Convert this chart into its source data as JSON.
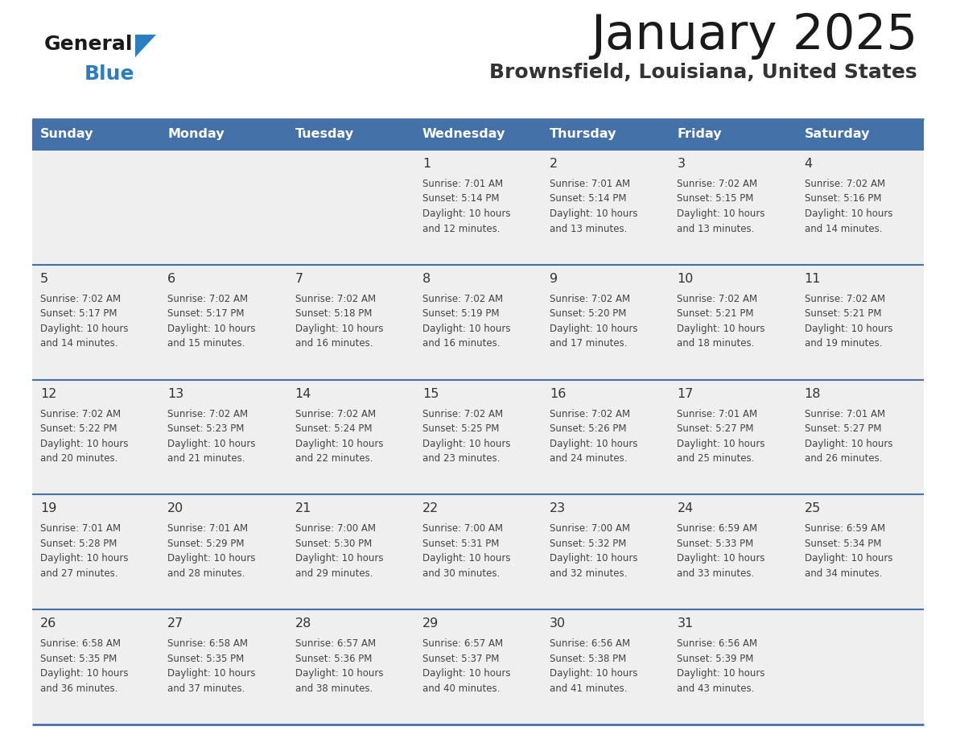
{
  "title": "January 2025",
  "subtitle": "Brownsfield, Louisiana, United States",
  "days_of_week": [
    "Sunday",
    "Monday",
    "Tuesday",
    "Wednesday",
    "Thursday",
    "Friday",
    "Saturday"
  ],
  "header_bg": "#4472a8",
  "header_text": "#FFFFFF",
  "cell_bg": "#EFEFEF",
  "cell_bg_alt": "#EFEFEF",
  "title_color": "#1a1a1a",
  "subtitle_color": "#333333",
  "day_number_color": "#333333",
  "cell_text_color": "#444444",
  "divider_color": "#4472a8",
  "logo_general_color": "#1a1a1a",
  "logo_blue_color": "#2B7EC1",
  "logo_triangle_color": "#2B7EC1",
  "weeks": [
    {
      "days": [
        {
          "date": "",
          "sunrise": "",
          "sunset": "",
          "daylight": ""
        },
        {
          "date": "",
          "sunrise": "",
          "sunset": "",
          "daylight": ""
        },
        {
          "date": "",
          "sunrise": "",
          "sunset": "",
          "daylight": ""
        },
        {
          "date": "1",
          "sunrise": "7:01 AM",
          "sunset": "5:14 PM",
          "daylight": "10 hours and 12 minutes."
        },
        {
          "date": "2",
          "sunrise": "7:01 AM",
          "sunset": "5:14 PM",
          "daylight": "10 hours and 13 minutes."
        },
        {
          "date": "3",
          "sunrise": "7:02 AM",
          "sunset": "5:15 PM",
          "daylight": "10 hours and 13 minutes."
        },
        {
          "date": "4",
          "sunrise": "7:02 AM",
          "sunset": "5:16 PM",
          "daylight": "10 hours and 14 minutes."
        }
      ]
    },
    {
      "days": [
        {
          "date": "5",
          "sunrise": "7:02 AM",
          "sunset": "5:17 PM",
          "daylight": "10 hours and 14 minutes."
        },
        {
          "date": "6",
          "sunrise": "7:02 AM",
          "sunset": "5:17 PM",
          "daylight": "10 hours and 15 minutes."
        },
        {
          "date": "7",
          "sunrise": "7:02 AM",
          "sunset": "5:18 PM",
          "daylight": "10 hours and 16 minutes."
        },
        {
          "date": "8",
          "sunrise": "7:02 AM",
          "sunset": "5:19 PM",
          "daylight": "10 hours and 16 minutes."
        },
        {
          "date": "9",
          "sunrise": "7:02 AM",
          "sunset": "5:20 PM",
          "daylight": "10 hours and 17 minutes."
        },
        {
          "date": "10",
          "sunrise": "7:02 AM",
          "sunset": "5:21 PM",
          "daylight": "10 hours and 18 minutes."
        },
        {
          "date": "11",
          "sunrise": "7:02 AM",
          "sunset": "5:21 PM",
          "daylight": "10 hours and 19 minutes."
        }
      ]
    },
    {
      "days": [
        {
          "date": "12",
          "sunrise": "7:02 AM",
          "sunset": "5:22 PM",
          "daylight": "10 hours and 20 minutes."
        },
        {
          "date": "13",
          "sunrise": "7:02 AM",
          "sunset": "5:23 PM",
          "daylight": "10 hours and 21 minutes."
        },
        {
          "date": "14",
          "sunrise": "7:02 AM",
          "sunset": "5:24 PM",
          "daylight": "10 hours and 22 minutes."
        },
        {
          "date": "15",
          "sunrise": "7:02 AM",
          "sunset": "5:25 PM",
          "daylight": "10 hours and 23 minutes."
        },
        {
          "date": "16",
          "sunrise": "7:02 AM",
          "sunset": "5:26 PM",
          "daylight": "10 hours and 24 minutes."
        },
        {
          "date": "17",
          "sunrise": "7:01 AM",
          "sunset": "5:27 PM",
          "daylight": "10 hours and 25 minutes."
        },
        {
          "date": "18",
          "sunrise": "7:01 AM",
          "sunset": "5:27 PM",
          "daylight": "10 hours and 26 minutes."
        }
      ]
    },
    {
      "days": [
        {
          "date": "19",
          "sunrise": "7:01 AM",
          "sunset": "5:28 PM",
          "daylight": "10 hours and 27 minutes."
        },
        {
          "date": "20",
          "sunrise": "7:01 AM",
          "sunset": "5:29 PM",
          "daylight": "10 hours and 28 minutes."
        },
        {
          "date": "21",
          "sunrise": "7:00 AM",
          "sunset": "5:30 PM",
          "daylight": "10 hours and 29 minutes."
        },
        {
          "date": "22",
          "sunrise": "7:00 AM",
          "sunset": "5:31 PM",
          "daylight": "10 hours and 30 minutes."
        },
        {
          "date": "23",
          "sunrise": "7:00 AM",
          "sunset": "5:32 PM",
          "daylight": "10 hours and 32 minutes."
        },
        {
          "date": "24",
          "sunrise": "6:59 AM",
          "sunset": "5:33 PM",
          "daylight": "10 hours and 33 minutes."
        },
        {
          "date": "25",
          "sunrise": "6:59 AM",
          "sunset": "5:34 PM",
          "daylight": "10 hours and 34 minutes."
        }
      ]
    },
    {
      "days": [
        {
          "date": "26",
          "sunrise": "6:58 AM",
          "sunset": "5:35 PM",
          "daylight": "10 hours and 36 minutes."
        },
        {
          "date": "27",
          "sunrise": "6:58 AM",
          "sunset": "5:35 PM",
          "daylight": "10 hours and 37 minutes."
        },
        {
          "date": "28",
          "sunrise": "6:57 AM",
          "sunset": "5:36 PM",
          "daylight": "10 hours and 38 minutes."
        },
        {
          "date": "29",
          "sunrise": "6:57 AM",
          "sunset": "5:37 PM",
          "daylight": "10 hours and 40 minutes."
        },
        {
          "date": "30",
          "sunrise": "6:56 AM",
          "sunset": "5:38 PM",
          "daylight": "10 hours and 41 minutes."
        },
        {
          "date": "31",
          "sunrise": "6:56 AM",
          "sunset": "5:39 PM",
          "daylight": "10 hours and 43 minutes."
        },
        {
          "date": "",
          "sunrise": "",
          "sunset": "",
          "daylight": ""
        }
      ]
    }
  ]
}
